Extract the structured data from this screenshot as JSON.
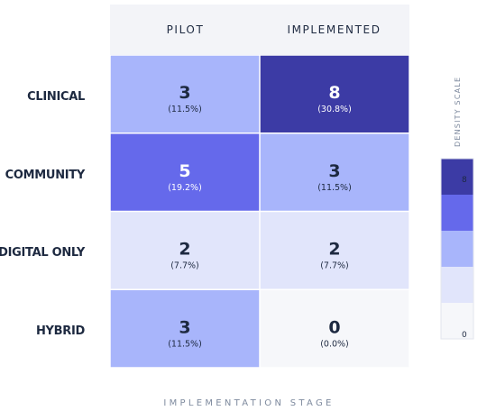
{
  "chart_data": {
    "type": "heatmap",
    "xlabel": "IMPLEMENTATION STAGE",
    "columns": [
      "PILOT",
      "IMPLEMENTED"
    ],
    "rows": [
      "CLINICAL",
      "COMMUNITY",
      "DIGITAL ONLY",
      "HYBRID"
    ],
    "values": [
      [
        3,
        8
      ],
      [
        5,
        3
      ],
      [
        2,
        2
      ],
      [
        3,
        0
      ]
    ],
    "percentages": [
      [
        "(11.5%)",
        "(30.8%)"
      ],
      [
        "(19.2%)",
        "(11.5%)"
      ],
      [
        "(7.7%)",
        "(7.7%)"
      ],
      [
        "(11.5%)",
        "(0.0%)"
      ]
    ],
    "legend": {
      "title": "DENSITY SCALE",
      "min_label": "0",
      "max_label": "8",
      "colors": [
        "#f6f7fa",
        "#e1e5fb",
        "#a8b5fb",
        "#6569eb",
        "#3c3ba5"
      ]
    },
    "colors": {
      "header_bg": "#f3f4f8",
      "dark_text": "#1d2940",
      "light_text": "#ffffff",
      "cell_border": "#e6e9f2"
    }
  }
}
